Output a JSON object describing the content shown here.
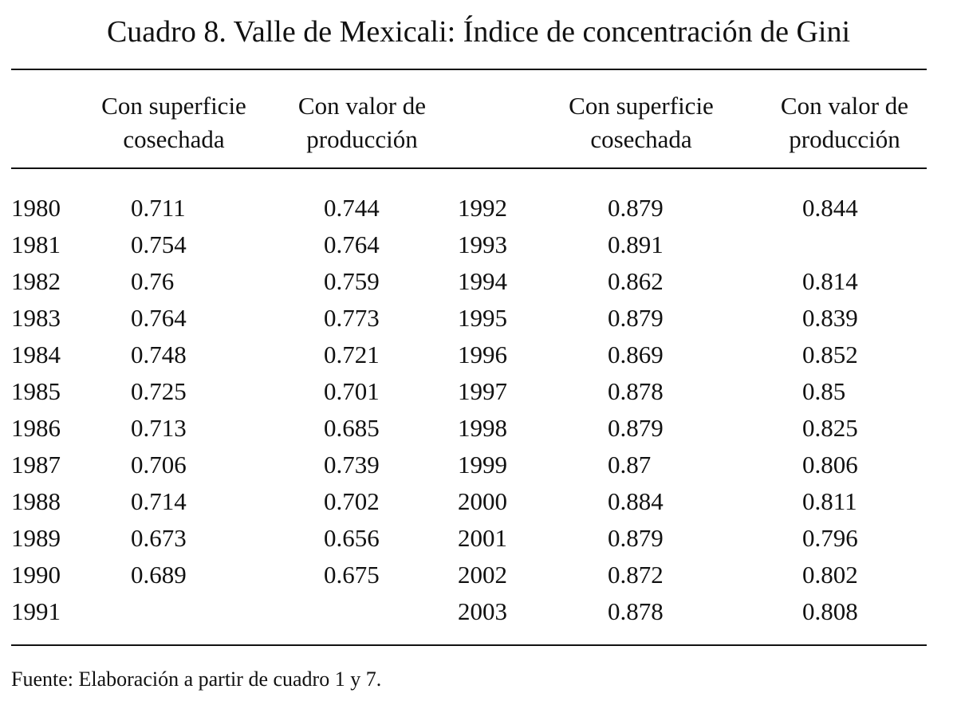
{
  "title": "Cuadro 8. Valle de Mexicali: Índice de concentración de Gini",
  "headers": {
    "left_superficie": [
      "Con superficie",
      "cosechada"
    ],
    "left_valor": [
      "Con valor de",
      "producción"
    ],
    "right_superficie": [
      "Con superficie",
      "cosechada"
    ],
    "right_valor": [
      "Con valor de",
      "producción"
    ]
  },
  "rows_left": [
    {
      "year": "1980",
      "superficie": "0.711",
      "valor": "0.744"
    },
    {
      "year": "1981",
      "superficie": "0.754",
      "valor": "0.764"
    },
    {
      "year": "1982",
      "superficie": "0.76",
      "valor": "0.759"
    },
    {
      "year": "1983",
      "superficie": "0.764",
      "valor": "0.773"
    },
    {
      "year": "1984",
      "superficie": "0.748",
      "valor": "0.721"
    },
    {
      "year": "1985",
      "superficie": "0.725",
      "valor": "0.701"
    },
    {
      "year": "1986",
      "superficie": "0.713",
      "valor": "0.685"
    },
    {
      "year": "1987",
      "superficie": "0.706",
      "valor": "0.739"
    },
    {
      "year": "1988",
      "superficie": "0.714",
      "valor": "0.702"
    },
    {
      "year": "1989",
      "superficie": "0.673",
      "valor": "0.656"
    },
    {
      "year": "1990",
      "superficie": "0.689",
      "valor": "0.675"
    },
    {
      "year": "1991",
      "superficie": "",
      "valor": ""
    }
  ],
  "rows_right": [
    {
      "year": "1992",
      "superficie": "0.879",
      "valor": "0.844"
    },
    {
      "year": "1993",
      "superficie": "0.891",
      "valor": ""
    },
    {
      "year": "1994",
      "superficie": "0.862",
      "valor": "0.814"
    },
    {
      "year": "1995",
      "superficie": "0.879",
      "valor": "0.839"
    },
    {
      "year": "1996",
      "superficie": "0.869",
      "valor": "0.852"
    },
    {
      "year": "1997",
      "superficie": "0.878",
      "valor": "0.85"
    },
    {
      "year": "1998",
      "superficie": "0.879",
      "valor": "0.825"
    },
    {
      "year": "1999",
      "superficie": "0.87",
      "valor": "0.806"
    },
    {
      "year": "2000",
      "superficie": "0.884",
      "valor": "0.811"
    },
    {
      "year": "2001",
      "superficie": "0.879",
      "valor": "0.796"
    },
    {
      "year": "2002",
      "superficie": "0.872",
      "valor": "0.802"
    },
    {
      "year": "2003",
      "superficie": "0.878",
      "valor": "0.808"
    }
  ],
  "source": "Fuente: Elaboración a partir de cuadro 1 y 7."
}
